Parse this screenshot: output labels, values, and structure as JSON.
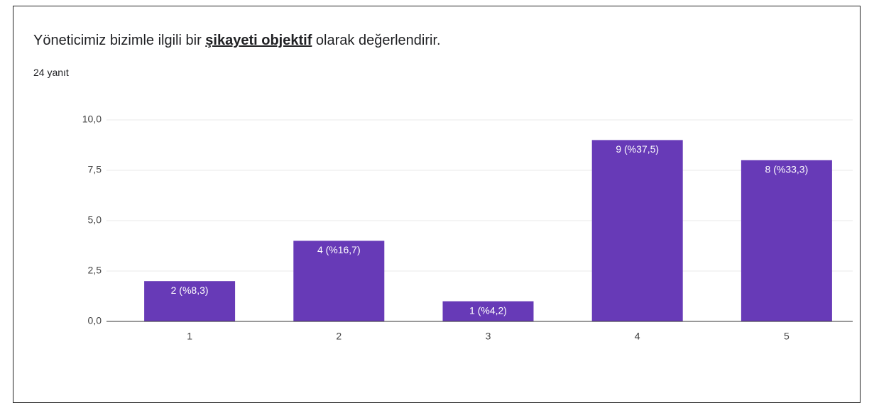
{
  "chart_data": {
    "type": "bar",
    "title": [
      "Yöneticimiz bizimle ilgili bir ",
      "şikayeti objektif",
      " olarak değerlendirir."
    ],
    "subtitle": "24 yanıt",
    "categories": [
      "1",
      "2",
      "3",
      "4",
      "5"
    ],
    "values": [
      2,
      4,
      1,
      9,
      8
    ],
    "value_labels": [
      "2 (%8,3)",
      "4 (%16,7)",
      "1 (%4,2)",
      "9 (%37,5)",
      "8 (%33,3)"
    ],
    "color": "#673ab7",
    "ylim": [
      0,
      10
    ],
    "yticks": [
      {
        "value": 0,
        "label": "0,0"
      },
      {
        "value": 2.5,
        "label": "2,5"
      },
      {
        "value": 5,
        "label": "5,0"
      },
      {
        "value": 7.5,
        "label": "7,5"
      },
      {
        "value": 10,
        "label": "10,0"
      }
    ],
    "grid": true
  }
}
